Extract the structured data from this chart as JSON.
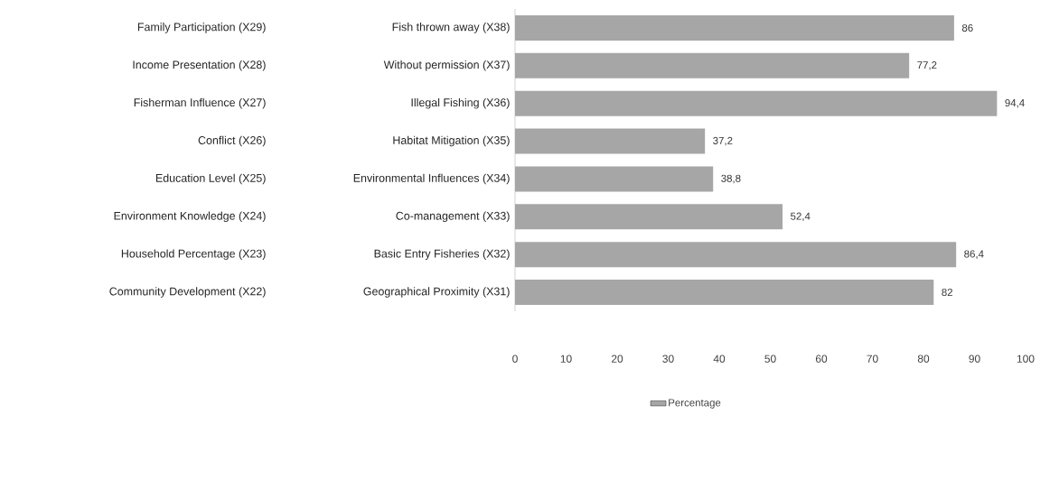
{
  "chart_data": {
    "type": "bar",
    "orientation": "horizontal",
    "categories": [
      "Fish thrown away (X38)",
      "Without permission (X37)",
      "Illegal Fishing (X36)",
      "Habitat Mitigation (X35)",
      "Environmental Influences (X34)",
      "Co-management (X33)",
      "Basic Entry Fisheries (X32)",
      "Geographical Proximity (X31)"
    ],
    "series": [
      {
        "name": "Percentage",
        "color": "#a6a6a6",
        "values": [
          86,
          77.2,
          94.4,
          37.2,
          38.8,
          52.4,
          86.4,
          82
        ]
      }
    ],
    "value_labels": [
      "86",
      "77,2",
      "94,4",
      "37,2",
      "38,8",
      "52,4",
      "86,4",
      "82"
    ],
    "annotations": [
      "Family Participation (X29)",
      "Income Presentation (X28)",
      "Fisherman Influence (X27)",
      "Conflict (X26)",
      "Education Level (X25)",
      "Environment Knowledge (X24)",
      "Household Percentage (X23)",
      "Community Development (X22)"
    ],
    "xlim": [
      0,
      100
    ],
    "xticks": [
      0,
      10,
      20,
      30,
      40,
      50,
      60,
      70,
      80,
      90,
      100
    ],
    "grid": false,
    "legend": "bottom"
  }
}
